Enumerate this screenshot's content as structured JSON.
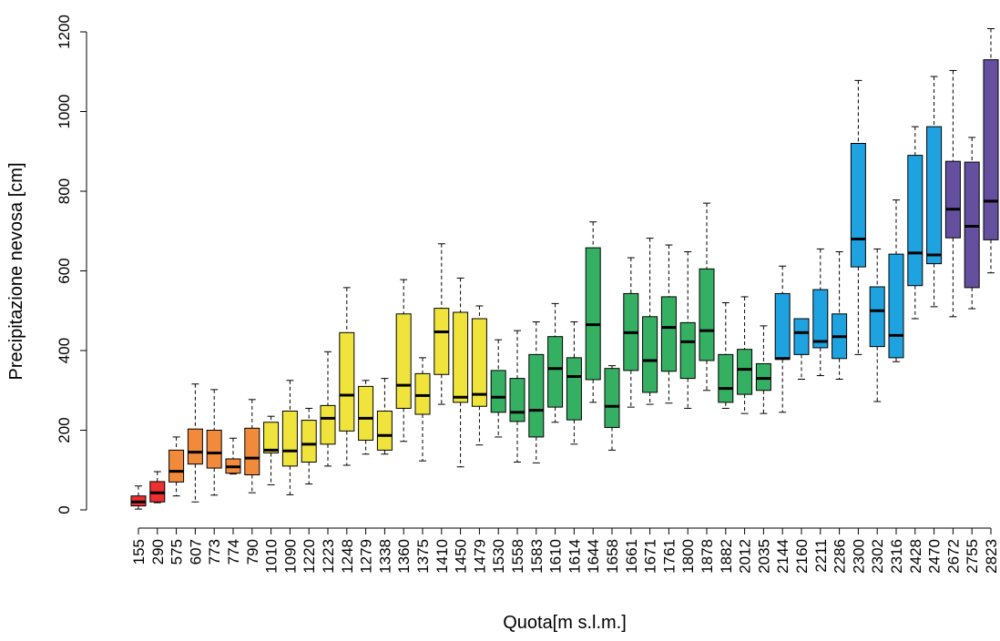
{
  "chart_data": {
    "type": "boxplot",
    "x_label": "Quota[m s.l.m.]",
    "y_label": "Precipitazione nevosa [cm]",
    "categories": [
      "155",
      "290",
      "575",
      "607",
      "773",
      "774",
      "790",
      "1010",
      "1090",
      "1220",
      "1223",
      "1248",
      "1279",
      "1338",
      "1360",
      "1375",
      "1410",
      "1450",
      "1479",
      "1530",
      "1558",
      "1583",
      "1610",
      "1614",
      "1644",
      "1658",
      "1661",
      "1671",
      "1761",
      "1800",
      "1878",
      "1882",
      "2012",
      "2035",
      "2144",
      "2160",
      "2211",
      "2286",
      "2300",
      "2302",
      "2316",
      "2428",
      "2470",
      "2672",
      "2755",
      "2823"
    ],
    "colors": [
      "#ee2f2f",
      "#ee2f2f",
      "#f28a3c",
      "#f28a3c",
      "#f28a3c",
      "#f28a3c",
      "#f28a3c",
      "#efe33c",
      "#efe33c",
      "#efe33c",
      "#efe33c",
      "#efe33c",
      "#efe33c",
      "#efe33c",
      "#efe33c",
      "#efe33c",
      "#efe33c",
      "#efe33c",
      "#efe33c",
      "#35b062",
      "#35b062",
      "#35b062",
      "#35b062",
      "#35b062",
      "#35b062",
      "#35b062",
      "#35b062",
      "#35b062",
      "#35b062",
      "#35b062",
      "#35b062",
      "#35b062",
      "#35b062",
      "#35b062",
      "#1fa3e0",
      "#1fa3e0",
      "#1fa3e0",
      "#1fa3e0",
      "#1fa3e0",
      "#1fa3e0",
      "#1fa3e0",
      "#1fa3e0",
      "#1fa3e0",
      "#6550a0",
      "#6550a0",
      "#6550a0"
    ],
    "min": [
      2,
      18,
      35,
      20,
      37,
      90,
      43,
      63,
      38,
      65,
      110,
      112,
      140,
      140,
      172,
      123,
      265,
      108,
      163,
      183,
      120,
      118,
      220,
      165,
      270,
      150,
      258,
      265,
      268,
      255,
      300,
      255,
      242,
      242,
      245,
      328,
      337,
      328,
      390,
      272,
      372,
      480,
      510,
      485,
      505,
      595
    ],
    "q1": [
      10,
      20,
      70,
      115,
      105,
      92,
      88,
      143,
      110,
      120,
      165,
      198,
      175,
      150,
      255,
      240,
      340,
      270,
      260,
      245,
      222,
      183,
      258,
      226,
      327,
      207,
      350,
      295,
      348,
      330,
      375,
      270,
      290,
      300,
      378,
      390,
      407,
      380,
      610,
      410,
      382,
      563,
      618,
      683,
      558,
      678
    ],
    "median": [
      20,
      43,
      97,
      145,
      143,
      108,
      130,
      150,
      148,
      165,
      230,
      288,
      230,
      187,
      313,
      287,
      447,
      283,
      290,
      283,
      245,
      250,
      355,
      335,
      465,
      260,
      445,
      375,
      458,
      422,
      450,
      305,
      353,
      330,
      380,
      445,
      423,
      435,
      680,
      500,
      438,
      645,
      640,
      755,
      712,
      775
    ],
    "q3": [
      35,
      71,
      150,
      203,
      200,
      128,
      205,
      220,
      248,
      225,
      262,
      445,
      310,
      248,
      492,
      342,
      506,
      496,
      480,
      350,
      330,
      390,
      435,
      382,
      658,
      355,
      543,
      485,
      535,
      470,
      605,
      390,
      403,
      367,
      543,
      480,
      553,
      492,
      920,
      560,
      642,
      890,
      962,
      875,
      873,
      1130
    ],
    "max": [
      60,
      96,
      183,
      316,
      302,
      180,
      277,
      235,
      325,
      255,
      397,
      558,
      325,
      330,
      578,
      382,
      668,
      582,
      512,
      427,
      450,
      472,
      518,
      472,
      723,
      362,
      633,
      682,
      665,
      648,
      770,
      520,
      535,
      462,
      612,
      480,
      655,
      648,
      1078,
      655,
      778,
      962,
      1088,
      1103,
      935,
      1208
    ],
    "ylim": [
      0,
      1200
    ],
    "yticks": [
      0,
      200,
      400,
      600,
      800,
      1000,
      1200
    ]
  }
}
